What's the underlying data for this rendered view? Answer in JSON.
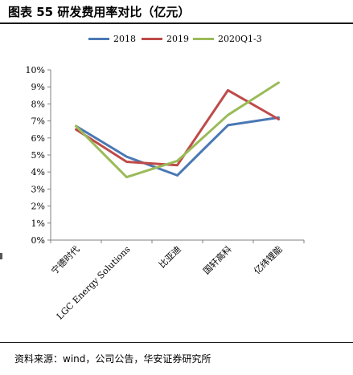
{
  "title": "图表 55  研发费用率对比（亿元）",
  "source": "资料来源：wind，公司公告，华安证券研究所",
  "chart_data": {
    "type": "line",
    "categories": [
      "宁德时代",
      "LGC Energy Solutions",
      "比亚迪",
      "国轩高科",
      "亿纬锂能"
    ],
    "series": [
      {
        "name": "2018",
        "color": "#4a78b5",
        "values": [
          6.7,
          4.9,
          3.8,
          6.75,
          7.2
        ]
      },
      {
        "name": "2019",
        "color": "#be4b48",
        "values": [
          6.5,
          4.6,
          4.4,
          8.8,
          7.1
        ]
      },
      {
        "name": "2020Q1-3",
        "color": "#9bbb59",
        "values": [
          6.7,
          3.7,
          4.65,
          7.35,
          9.25
        ]
      }
    ],
    "yticks": [
      "0%",
      "1%",
      "2%",
      "3%",
      "4%",
      "5%",
      "6%",
      "7%",
      "8%",
      "9%",
      "10%"
    ],
    "ylim": [
      0,
      10
    ],
    "grid": false,
    "legend_position": "top"
  }
}
